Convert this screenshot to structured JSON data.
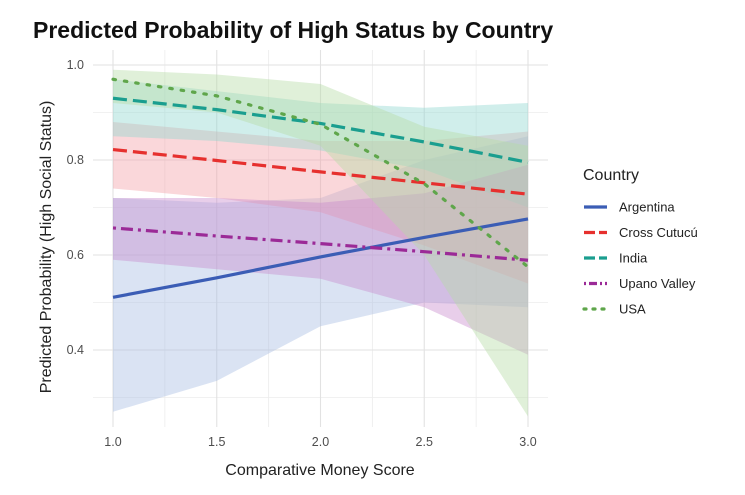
{
  "chart_data": {
    "type": "line",
    "title": "Predicted Probability of High Status by Country",
    "xlabel": "Comparative Money Score",
    "ylabel": "Predicted Probability (High Social Status)",
    "xlim": [
      1.0,
      3.0
    ],
    "ylim": [
      0.26,
      1.0
    ],
    "x_ticks": [
      "1.0",
      "1.5",
      "2.0",
      "2.5",
      "3.0"
    ],
    "y_ticks": [
      "0.4",
      "0.6",
      "0.8",
      "1.0"
    ],
    "grid": true,
    "legend_title": "Country",
    "legend_position": "right",
    "series": [
      {
        "name": "Argentina",
        "color": "#3b5db5",
        "linetype": "solid",
        "fill": "#a6bde3",
        "x": [
          1.0,
          1.5,
          2.0,
          2.5,
          3.0
        ],
        "values": [
          0.511,
          0.552,
          0.596,
          0.637,
          0.676
        ],
        "lower": [
          0.27,
          0.335,
          0.45,
          0.5,
          0.49
        ],
        "upper": [
          0.72,
          0.71,
          0.72,
          0.8,
          0.85
        ]
      },
      {
        "name": "Cross Cutucú",
        "color": "#e6302e",
        "linetype": "dashed",
        "fill": "#f2a0a8",
        "x": [
          1.0,
          1.5,
          2.0,
          2.5,
          3.0
        ],
        "values": [
          0.822,
          0.799,
          0.775,
          0.752,
          0.728
        ],
        "lower": [
          0.74,
          0.72,
          0.69,
          0.62,
          0.54
        ],
        "upper": [
          0.88,
          0.86,
          0.84,
          0.84,
          0.86
        ]
      },
      {
        "name": "India",
        "color": "#1a9e8f",
        "linetype": "dashed",
        "fill": "#8fd7cf",
        "x": [
          1.0,
          1.5,
          2.0,
          2.5,
          3.0
        ],
        "values": [
          0.93,
          0.906,
          0.877,
          0.838,
          0.795
        ],
        "lower": [
          0.85,
          0.84,
          0.82,
          0.78,
          0.7
        ],
        "upper": [
          0.97,
          0.945,
          0.92,
          0.91,
          0.92
        ]
      },
      {
        "name": "Upano Valley",
        "color": "#9b2a97",
        "linetype": "dotdash",
        "fill": "#c98bce",
        "x": [
          1.0,
          1.5,
          2.0,
          2.5,
          3.0
        ],
        "values": [
          0.657,
          0.64,
          0.624,
          0.607,
          0.589
        ],
        "lower": [
          0.59,
          0.57,
          0.55,
          0.49,
          0.39
        ],
        "upper": [
          0.72,
          0.72,
          0.71,
          0.73,
          0.79
        ]
      },
      {
        "name": "USA",
        "color": "#5fa64b",
        "linetype": "dotted",
        "fill": "#b4dca5",
        "x": [
          1.0,
          1.5,
          2.0,
          2.5,
          3.0
        ],
        "values": [
          0.97,
          0.935,
          0.875,
          0.75,
          0.575
        ],
        "lower": [
          0.92,
          0.9,
          0.83,
          0.6,
          0.26
        ],
        "upper": [
          0.99,
          0.98,
          0.96,
          0.87,
          0.83
        ]
      }
    ]
  }
}
